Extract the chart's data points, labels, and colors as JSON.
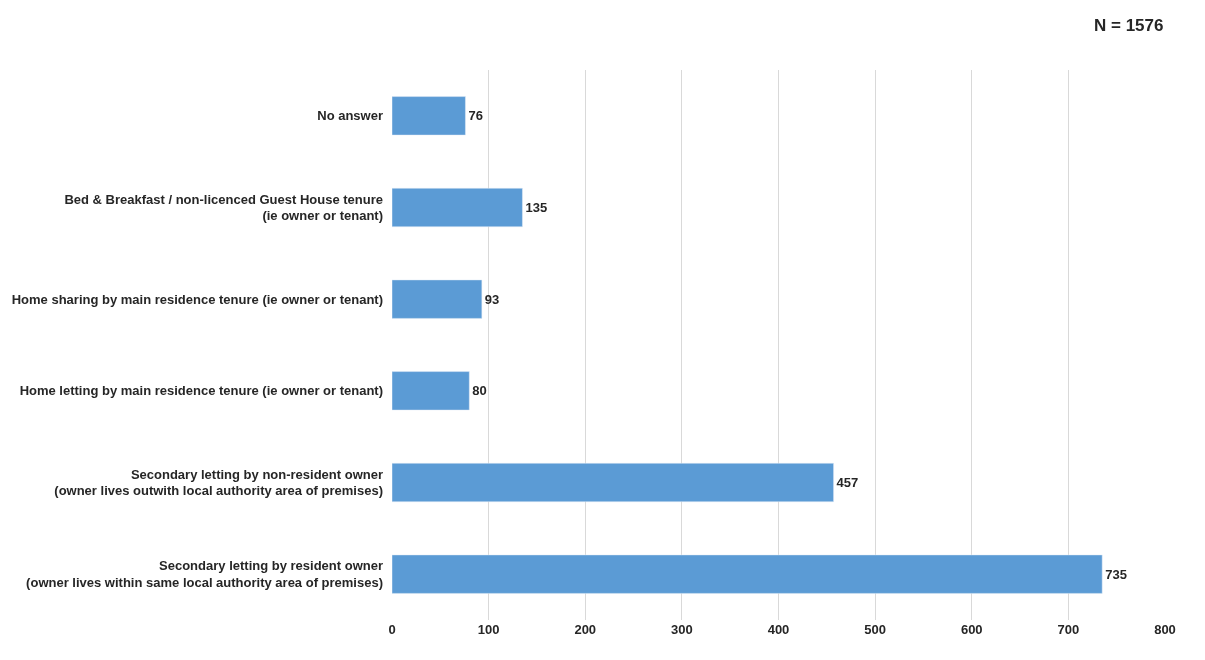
{
  "chart_data": {
    "type": "bar",
    "orientation": "horizontal",
    "categories": [
      "No answer",
      "Bed & Breakfast / non-licenced Guest House tenure\n(ie owner or tenant)",
      "Home sharing by main residence tenure (ie owner or tenant)",
      "Home letting by main residence tenure (ie owner or tenant)",
      "Secondary letting by non-resident owner\n(owner lives outwith local authority area of premises)",
      "Secondary letting by resident owner\n(owner lives within same local authority area of premises)"
    ],
    "values": [
      76,
      135,
      93,
      80,
      457,
      735
    ],
    "color": "#5b9bd5",
    "xlim": [
      0,
      800
    ],
    "xticks": [
      0,
      100,
      200,
      300,
      400,
      500,
      600,
      700,
      800
    ],
    "grid": "x",
    "data_labels": true,
    "annotations": [
      "N = 1576"
    ]
  }
}
